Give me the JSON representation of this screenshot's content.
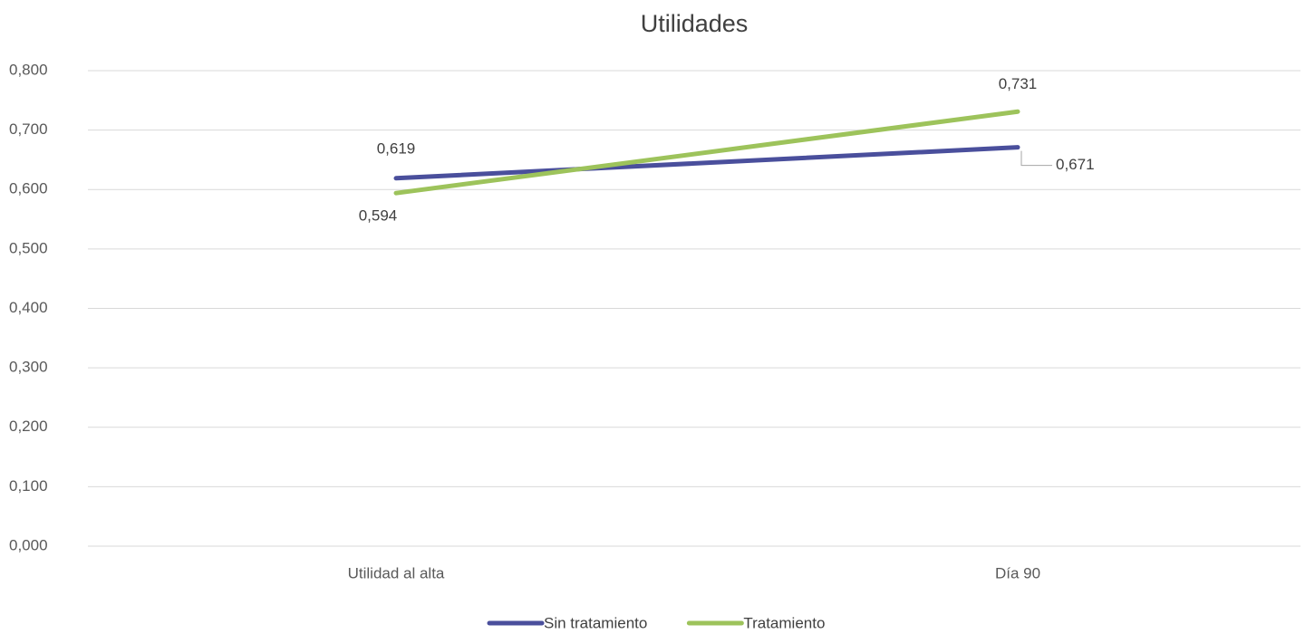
{
  "chart_data": {
    "type": "line",
    "title": "Utilidades",
    "categories": [
      "Utilidad al alta",
      "Día 90"
    ],
    "series": [
      {
        "name": "Sin tratamiento",
        "color": "#4a4f9c",
        "values": [
          0.619,
          0.671
        ],
        "value_labels": [
          "0,619",
          "0,671"
        ]
      },
      {
        "name": "Tratamiento",
        "color": "#9dc35b",
        "values": [
          0.594,
          0.731
        ],
        "value_labels": [
          "0,594",
          "0,731"
        ]
      }
    ],
    "ylim": [
      0,
      0.8
    ],
    "yticks": [
      {
        "value": 0,
        "label": "0,000"
      },
      {
        "value": 0.1,
        "label": "0,100"
      },
      {
        "value": 0.2,
        "label": "0,200"
      },
      {
        "value": 0.3,
        "label": "0,300"
      },
      {
        "value": 0.4,
        "label": "0,400"
      },
      {
        "value": 0.5,
        "label": "0,500"
      },
      {
        "value": 0.6,
        "label": "0,600"
      },
      {
        "value": 0.7,
        "label": "0,700"
      },
      {
        "value": 0.8,
        "label": "0,800"
      }
    ],
    "grid": true,
    "legend": "bottom"
  }
}
